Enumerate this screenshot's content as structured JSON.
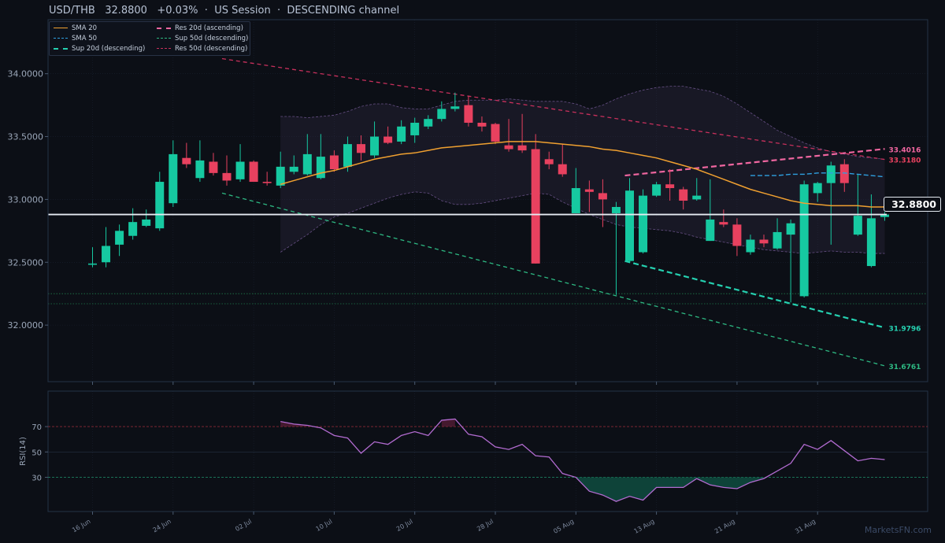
{
  "header": {
    "title": "USD/THB   32.8800   +0.03%  ·  US Session  ·  DESCENDING channel"
  },
  "watermark": "MarketsFN.com",
  "last_price_label": "32.8800",
  "colors": {
    "background": "#0c0f16",
    "panel_border": "#243347",
    "up": "#16c9a1",
    "down": "#e8415f",
    "sma20": "#f0a030",
    "sma50": "#2fa0e0",
    "sup20": "#25d0b0",
    "sup50": "#2db882",
    "res20": "#f066a0",
    "res50": "#c8305c",
    "rsi": "#b26bd0",
    "bands": "#8a6ab0"
  },
  "chart_data": [
    {
      "type": "candlestick",
      "title": "USD/THB   32.8800   +0.03%  ·  US Session  ·  DESCENDING channel",
      "x_tick_labels": [
        "16 Jun",
        "24 Jun",
        "02 Jul",
        "10 Jul",
        "20 Jul",
        "28 Jul",
        "05 Aug",
        "13 Aug",
        "21 Aug",
        "31 Aug"
      ],
      "y_tick_labels": [
        "32.0000",
        "32.5000",
        "33.0000",
        "33.5000",
        "34.0000"
      ],
      "ylim": [
        31.55,
        34.43
      ],
      "grid": true,
      "legend_position": "top-left",
      "last_price": 32.88,
      "candles": [
        {
          "o": 32.48,
          "h": 32.62,
          "l": 32.46,
          "c": 32.49
        },
        {
          "o": 32.5,
          "h": 32.78,
          "l": 32.46,
          "c": 32.63
        },
        {
          "o": 32.64,
          "h": 32.8,
          "l": 32.55,
          "c": 32.75
        },
        {
          "o": 32.71,
          "h": 32.93,
          "l": 32.68,
          "c": 32.82
        },
        {
          "o": 32.79,
          "h": 32.92,
          "l": 32.78,
          "c": 32.84
        },
        {
          "o": 32.77,
          "h": 33.22,
          "l": 32.75,
          "c": 33.14
        },
        {
          "o": 32.97,
          "h": 33.47,
          "l": 32.94,
          "c": 33.36
        },
        {
          "o": 33.33,
          "h": 33.45,
          "l": 33.25,
          "c": 33.28
        },
        {
          "o": 33.17,
          "h": 33.47,
          "l": 33.14,
          "c": 33.31
        },
        {
          "o": 33.3,
          "h": 33.37,
          "l": 33.19,
          "c": 33.21
        },
        {
          "o": 33.21,
          "h": 33.35,
          "l": 33.11,
          "c": 33.15
        },
        {
          "o": 33.16,
          "h": 33.44,
          "l": 33.14,
          "c": 33.3
        },
        {
          "o": 33.3,
          "h": 33.31,
          "l": 33.14,
          "c": 33.14
        },
        {
          "o": 33.14,
          "h": 33.22,
          "l": 33.11,
          "c": 33.13
        },
        {
          "o": 33.11,
          "h": 33.38,
          "l": 33.09,
          "c": 33.26
        },
        {
          "o": 33.22,
          "h": 33.35,
          "l": 33.2,
          "c": 33.26
        },
        {
          "o": 33.2,
          "h": 33.52,
          "l": 33.19,
          "c": 33.36
        },
        {
          "o": 33.17,
          "h": 33.52,
          "l": 33.16,
          "c": 33.34
        },
        {
          "o": 33.35,
          "h": 33.39,
          "l": 33.22,
          "c": 33.24
        },
        {
          "o": 33.26,
          "h": 33.5,
          "l": 33.22,
          "c": 33.44
        },
        {
          "o": 33.44,
          "h": 33.51,
          "l": 33.31,
          "c": 33.37
        },
        {
          "o": 33.35,
          "h": 33.62,
          "l": 33.33,
          "c": 33.5
        },
        {
          "o": 33.5,
          "h": 33.58,
          "l": 33.44,
          "c": 33.45
        },
        {
          "o": 33.46,
          "h": 33.63,
          "l": 33.44,
          "c": 33.58
        },
        {
          "o": 33.51,
          "h": 33.65,
          "l": 33.45,
          "c": 33.61
        },
        {
          "o": 33.58,
          "h": 33.67,
          "l": 33.56,
          "c": 33.64
        },
        {
          "o": 33.64,
          "h": 33.78,
          "l": 33.62,
          "c": 33.72
        },
        {
          "o": 33.72,
          "h": 33.85,
          "l": 33.7,
          "c": 33.74
        },
        {
          "o": 33.75,
          "h": 33.82,
          "l": 33.58,
          "c": 33.61
        },
        {
          "o": 33.61,
          "h": 33.66,
          "l": 33.54,
          "c": 33.58
        },
        {
          "o": 33.6,
          "h": 33.61,
          "l": 33.44,
          "c": 33.46
        },
        {
          "o": 33.43,
          "h": 33.64,
          "l": 33.38,
          "c": 33.4
        },
        {
          "o": 33.43,
          "h": 33.68,
          "l": 33.37,
          "c": 33.39
        },
        {
          "o": 33.4,
          "h": 33.52,
          "l": 32.49,
          "c": 32.49
        },
        {
          "o": 33.32,
          "h": 33.38,
          "l": 33.24,
          "c": 33.28
        },
        {
          "o": 33.28,
          "h": 33.44,
          "l": 33.18,
          "c": 33.2
        },
        {
          "o": 32.89,
          "h": 33.25,
          "l": 32.89,
          "c": 33.09
        },
        {
          "o": 33.08,
          "h": 33.15,
          "l": 32.9,
          "c": 33.06
        },
        {
          "o": 33.05,
          "h": 33.16,
          "l": 32.78,
          "c": 33.0
        },
        {
          "o": 32.89,
          "h": 32.98,
          "l": 32.24,
          "c": 32.94
        },
        {
          "o": 32.51,
          "h": 33.17,
          "l": 32.5,
          "c": 33.07
        },
        {
          "o": 32.58,
          "h": 33.08,
          "l": 32.57,
          "c": 33.03
        },
        {
          "o": 33.03,
          "h": 33.14,
          "l": 33.02,
          "c": 33.12
        },
        {
          "o": 33.12,
          "h": 33.24,
          "l": 32.99,
          "c": 33.09
        },
        {
          "o": 33.08,
          "h": 33.1,
          "l": 32.92,
          "c": 32.99
        },
        {
          "o": 33.0,
          "h": 33.17,
          "l": 32.99,
          "c": 33.03
        },
        {
          "o": 32.67,
          "h": 33.16,
          "l": 32.67,
          "c": 32.84
        },
        {
          "o": 32.82,
          "h": 32.92,
          "l": 32.78,
          "c": 32.8
        },
        {
          "o": 32.8,
          "h": 32.85,
          "l": 32.55,
          "c": 32.63
        },
        {
          "o": 32.58,
          "h": 32.72,
          "l": 32.56,
          "c": 32.68
        },
        {
          "o": 32.68,
          "h": 32.72,
          "l": 32.62,
          "c": 32.65
        },
        {
          "o": 32.61,
          "h": 32.85,
          "l": 32.6,
          "c": 32.74
        },
        {
          "o": 32.72,
          "h": 32.84,
          "l": 32.18,
          "c": 32.81
        },
        {
          "o": 32.23,
          "h": 33.15,
          "l": 32.22,
          "c": 33.12
        },
        {
          "o": 33.05,
          "h": 33.14,
          "l": 32.98,
          "c": 33.13
        },
        {
          "o": 33.13,
          "h": 33.3,
          "l": 32.64,
          "c": 33.27
        },
        {
          "o": 33.28,
          "h": 33.32,
          "l": 33.06,
          "c": 33.13
        },
        {
          "o": 32.72,
          "h": 33.2,
          "l": 32.71,
          "c": 32.87
        },
        {
          "o": 32.47,
          "h": 33.04,
          "l": 32.46,
          "c": 32.85
        },
        {
          "o": 32.86,
          "h": 32.9,
          "l": 32.83,
          "c": 32.88
        }
      ],
      "sma20": [
        33.12,
        33.15,
        33.18,
        33.21,
        33.23,
        33.26,
        33.29,
        33.32,
        33.34,
        33.36,
        33.37,
        33.39,
        33.41,
        33.42,
        33.43,
        33.44,
        33.45,
        33.46,
        33.46,
        33.46,
        33.45,
        33.44,
        33.43,
        33.42,
        33.4,
        33.39,
        33.37,
        33.35,
        33.33,
        33.3,
        33.27,
        33.24,
        33.2,
        33.16,
        33.12,
        33.08,
        33.05,
        33.02,
        32.99,
        32.97,
        32.96,
        32.95,
        32.95,
        32.95,
        32.94,
        32.94
      ],
      "sma20_start_index": 14,
      "sma50": [
        33.19,
        33.19,
        33.19,
        33.2,
        33.2,
        33.21,
        33.21,
        33.21,
        33.2,
        33.19,
        33.18
      ],
      "sma50_start_index": 49,
      "bollinger_upper": [
        33.66,
        33.66,
        33.65,
        33.66,
        33.67,
        33.7,
        33.74,
        33.76,
        33.76,
        33.73,
        33.72,
        33.72,
        33.75,
        33.78,
        33.79,
        33.79,
        33.79,
        33.8,
        33.79,
        33.78,
        33.78,
        33.78,
        33.76,
        33.72,
        33.75,
        33.8,
        33.84,
        33.87,
        33.89,
        33.9,
        33.9,
        33.88,
        33.86,
        33.82,
        33.76,
        33.69,
        33.62,
        33.55,
        33.5,
        33.45,
        33.41,
        33.38,
        33.36,
        33.34,
        33.33,
        33.32
      ],
      "bollinger_lower": [
        32.58,
        32.65,
        32.72,
        32.8,
        32.86,
        32.89,
        32.93,
        32.97,
        33.01,
        33.04,
        33.06,
        33.05,
        32.99,
        32.96,
        32.96,
        32.97,
        32.99,
        33.01,
        33.03,
        33.05,
        33.04,
        32.98,
        32.93,
        32.88,
        32.84,
        32.8,
        32.78,
        32.77,
        32.76,
        32.75,
        32.73,
        32.7,
        32.68,
        32.66,
        32.64,
        32.62,
        32.6,
        32.59,
        32.58,
        32.57,
        32.58,
        32.59,
        32.58,
        32.58,
        32.57,
        32.57
      ],
      "bollinger_start_index": 14,
      "trendlines": [
        {
          "name": "Res 20d (ascending)",
          "start_index": 40,
          "start": 33.19,
          "end_index": 59,
          "end": 33.4016,
          "label": "33.4016"
        },
        {
          "name": "Res 50d (descending)",
          "start_index": 10,
          "start": 34.12,
          "end_index": 59,
          "end": 33.318,
          "label": "33.3180"
        },
        {
          "name": "Sup 20d (descending)",
          "start_index": 40,
          "start": 32.51,
          "end_index": 59,
          "end": 31.9796,
          "label": "31.9796"
        },
        {
          "name": "Sup 50d (descending)",
          "start_index": 10,
          "start": 33.05,
          "end_index": 59,
          "end": 31.6761,
          "label": "31.6761"
        }
      ],
      "horizontal_levels": [
        32.25,
        32.17
      ],
      "legend": [
        {
          "name": "SMA 20",
          "key": "sma20"
        },
        {
          "name": "SMA 50",
          "key": "sma50"
        },
        {
          "name": "Sup 20d (descending)",
          "key": "sup20"
        },
        {
          "name": "Res 20d (ascending)",
          "key": "res20"
        },
        {
          "name": "Sup 50d (descending)",
          "key": "sup50"
        },
        {
          "name": "Res 50d (descending)",
          "key": "res50"
        }
      ]
    },
    {
      "type": "line",
      "ylabel": "RSI(14)",
      "y_tick_labels": [
        "30",
        "50",
        "70"
      ],
      "ylim": [
        3,
        98
      ],
      "overbought": 70,
      "oversold": 30,
      "rsi_start_index": 14,
      "rsi": [
        74,
        72,
        71,
        69,
        63,
        61,
        49,
        58,
        56,
        63,
        66,
        63,
        75,
        76,
        64,
        62,
        54,
        52,
        56,
        47,
        46,
        33,
        30,
        19,
        16,
        11,
        15,
        12,
        22,
        22,
        22,
        29,
        24,
        22,
        21,
        26,
        29,
        35,
        41,
        56,
        52,
        59,
        51,
        43,
        45,
        44
      ]
    }
  ]
}
